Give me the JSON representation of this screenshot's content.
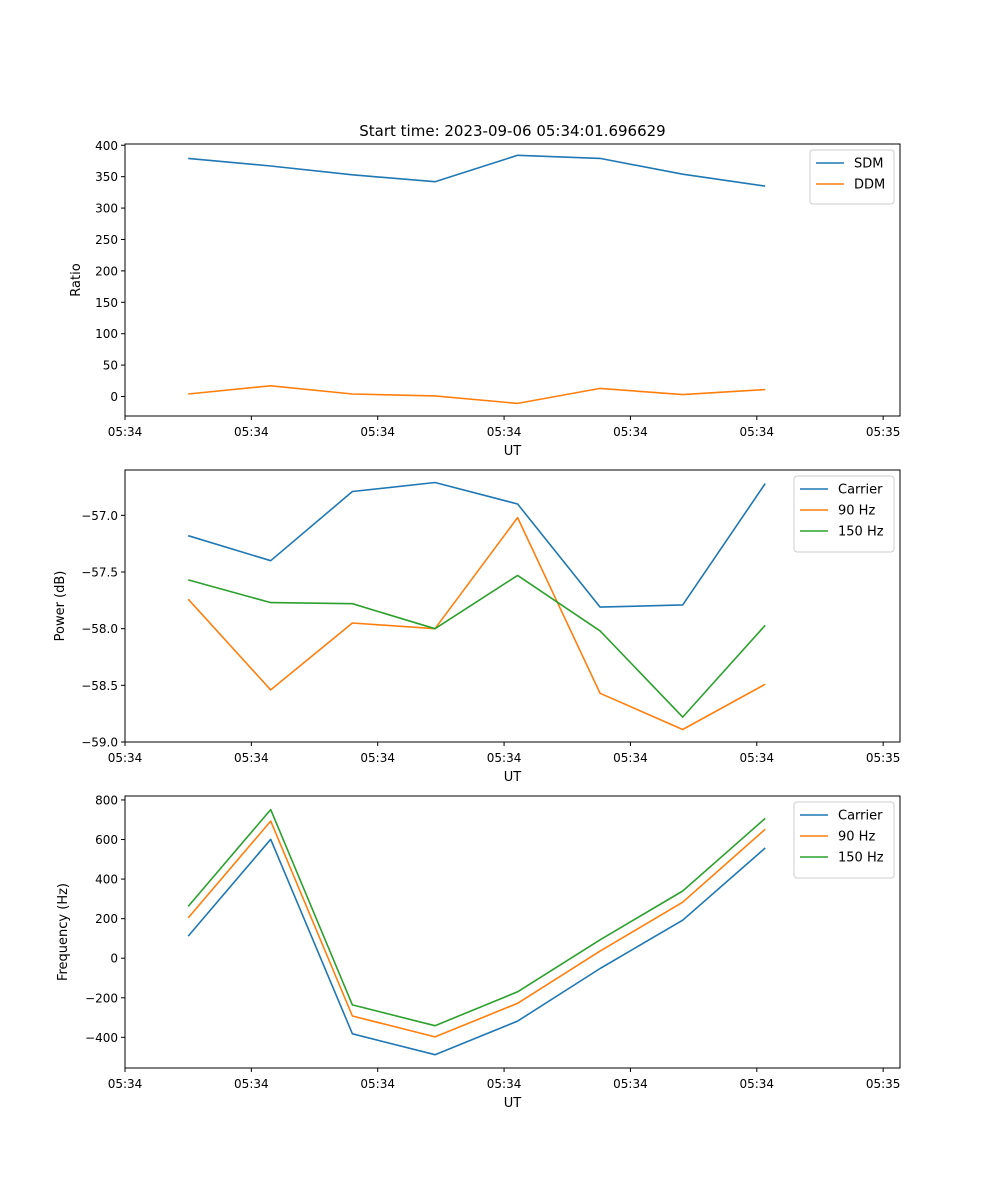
{
  "title": "Start time: 2023-09-06 05:34:01.696629",
  "chart_data": [
    {
      "type": "line",
      "ylabel": "Ratio",
      "xlabel": "UT",
      "xlim": [
        0,
        9.2
      ],
      "ylim": [
        -31,
        402
      ],
      "xticks": [
        0,
        1.5,
        3,
        4.5,
        6,
        7.5,
        9
      ],
      "xtick_labels": [
        "05:34",
        "05:34",
        "05:34",
        "05:34",
        "05:34",
        "05:34",
        "05:35"
      ],
      "yticks": [
        0,
        50,
        100,
        150,
        200,
        250,
        300,
        350,
        400
      ],
      "ytick_labels": [
        "0",
        "50",
        "100",
        "150",
        "200",
        "250",
        "300",
        "350",
        "400"
      ],
      "x": [
        0.75,
        1.73,
        2.7,
        3.68,
        4.66,
        5.64,
        6.62,
        7.6
      ],
      "legend_loc": "top-right",
      "series": [
        {
          "name": "SDM",
          "color": "#1f77b4",
          "values": [
            379,
            367,
            353,
            342,
            384,
            379,
            354,
            335
          ]
        },
        {
          "name": "DDM",
          "color": "#ff7f0e",
          "values": [
            4,
            17,
            4,
            1,
            -11,
            13,
            3,
            11
          ]
        }
      ]
    },
    {
      "type": "line",
      "ylabel": "Power (dB)",
      "xlabel": "UT",
      "xlim": [
        0,
        9.2
      ],
      "ylim": [
        -59.0,
        -56.6
      ],
      "xticks": [
        0,
        1.5,
        3,
        4.5,
        6,
        7.5,
        9
      ],
      "xtick_labels": [
        "05:34",
        "05:34",
        "05:34",
        "05:34",
        "05:34",
        "05:34",
        "05:35"
      ],
      "yticks": [
        -59.0,
        -58.5,
        -58.0,
        -57.5,
        -57.0
      ],
      "ytick_labels": [
        "−59.0",
        "−58.5",
        "−58.0",
        "−57.5",
        "−57.0"
      ],
      "x": [
        0.75,
        1.73,
        2.7,
        3.68,
        4.66,
        5.64,
        6.62,
        7.6
      ],
      "legend_loc": "top-right",
      "series": [
        {
          "name": "Carrier",
          "color": "#1f77b4",
          "values": [
            -57.18,
            -57.4,
            -56.79,
            -56.71,
            -56.9,
            -57.81,
            -57.79,
            -56.72
          ]
        },
        {
          "name": "90 Hz",
          "color": "#ff7f0e",
          "values": [
            -57.74,
            -58.54,
            -57.95,
            -58.0,
            -57.02,
            -58.57,
            -58.89,
            -58.49
          ]
        },
        {
          "name": "150 Hz",
          "color": "#2ca02c",
          "values": [
            -57.57,
            -57.77,
            -57.78,
            -58.0,
            -57.53,
            -58.02,
            -58.78,
            -57.97
          ]
        }
      ]
    },
    {
      "type": "line",
      "ylabel": "Frequency (Hz)",
      "xlabel": "UT",
      "xlim": [
        0,
        9.2
      ],
      "ylim": [
        -555,
        820
      ],
      "xticks": [
        0,
        1.5,
        3,
        4.5,
        6,
        7.5,
        9
      ],
      "xtick_labels": [
        "05:34",
        "05:34",
        "05:34",
        "05:34",
        "05:34",
        "05:34",
        "05:35"
      ],
      "yticks": [
        -400,
        -200,
        0,
        200,
        400,
        600,
        800
      ],
      "ytick_labels": [
        "−400",
        "−200",
        "0",
        "200",
        "400",
        "600",
        "800"
      ],
      "x": [
        0.75,
        1.73,
        2.7,
        3.68,
        4.66,
        5.64,
        6.62,
        7.6
      ],
      "legend_loc": "top-right",
      "series": [
        {
          "name": "Carrier",
          "color": "#1f77b4",
          "values": [
            112,
            601,
            -382,
            -488,
            -318,
            -52,
            192,
            557
          ]
        },
        {
          "name": "90 Hz",
          "color": "#ff7f0e",
          "values": [
            204,
            693,
            -292,
            -398,
            -228,
            36,
            283,
            652
          ]
        },
        {
          "name": "150 Hz",
          "color": "#2ca02c",
          "values": [
            262,
            751,
            -236,
            -341,
            -170,
            93,
            340,
            707
          ]
        }
      ]
    }
  ]
}
